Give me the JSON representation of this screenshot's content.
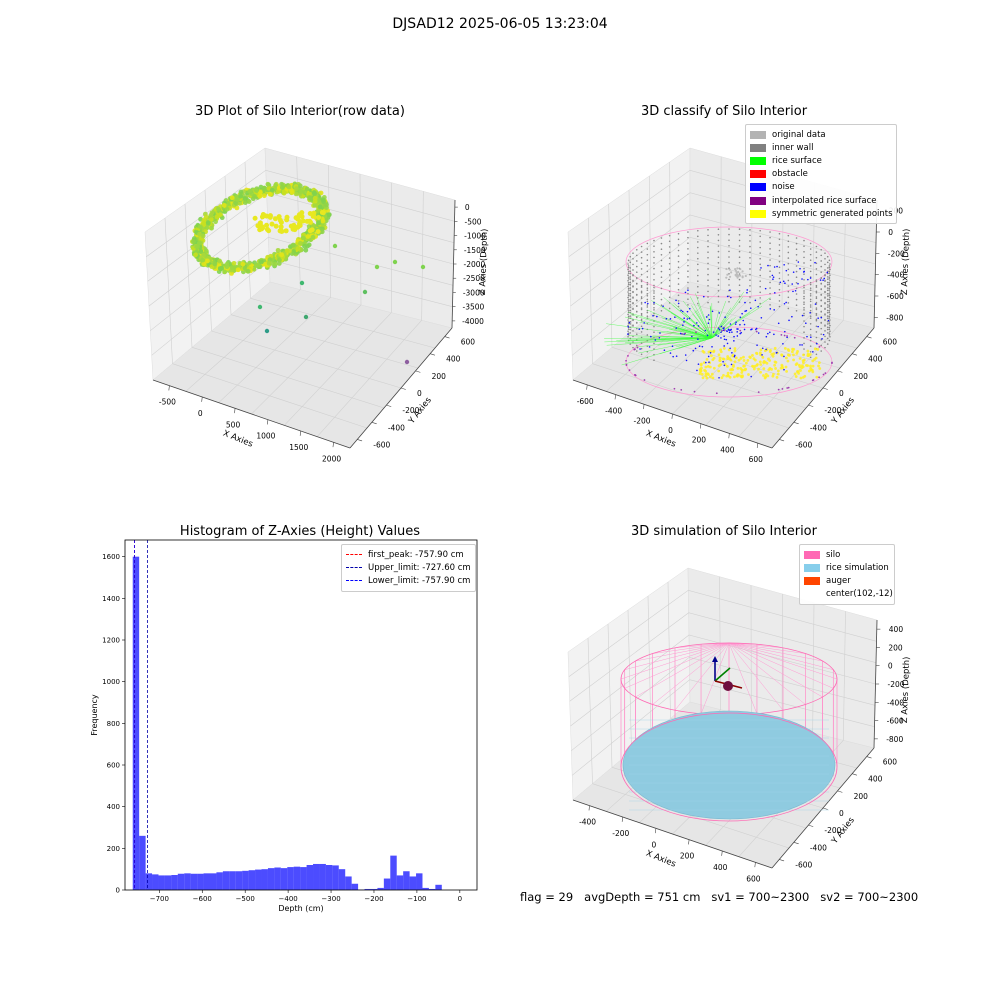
{
  "suptitle": "DJSAD12 2025-06-05 13:23:04",
  "footer": {
    "flag": "flag = 29",
    "avg_depth": "avgDepth = 751 cm",
    "sv1": "sv1 = 700~2300",
    "sv2": "sv2 = 700~2300"
  },
  "chart_data": [
    {
      "type": "scatter",
      "id": "raw",
      "title": "3D Plot of Silo Interior(row data)",
      "xlabel": "X Axies",
      "ylabel": "Y Axies",
      "zlabel": "Z Axies (Depth)",
      "xticks": [
        "-500",
        "0",
        "500",
        "1000",
        "1500",
        "2000"
      ],
      "yticks": [
        "-600",
        "-400",
        "-200",
        "0",
        "200",
        "400",
        "600"
      ],
      "zticks": [
        "0",
        "-500",
        "-1000",
        "-1500",
        "-2000",
        "-2500",
        "-3000",
        "-3500",
        "-4000"
      ]
    },
    {
      "type": "scatter",
      "id": "classify",
      "title": "3D classify of Silo Interior",
      "xlabel": "X Axies",
      "ylabel": "Y Axies",
      "zlabel": "Z Axies (Depth)",
      "xticks": [
        "-600",
        "-400",
        "-200",
        "0",
        "200",
        "400",
        "600"
      ],
      "yticks": [
        "-600",
        "-400",
        "-200",
        "0",
        "200",
        "400",
        "600"
      ],
      "zticks": [
        "200",
        "0",
        "-200",
        "-400",
        "-600",
        "-800"
      ],
      "legend": [
        {
          "name": "original data",
          "color": "#b3b3b3"
        },
        {
          "name": "inner wall",
          "color": "#808080"
        },
        {
          "name": "rice surface",
          "color": "#00ff00"
        },
        {
          "name": "obstacle",
          "color": "#ff0000"
        },
        {
          "name": "noise",
          "color": "#0000ff"
        },
        {
          "name": "interpolated rice surface",
          "color": "#800080"
        },
        {
          "name": "symmetric generated points",
          "color": "#ffff00"
        }
      ]
    },
    {
      "type": "bar",
      "id": "hist",
      "title": "Histogram of Z-Axies (Height) Values",
      "xlabel": "Depth (cm)",
      "ylabel": "Frequency",
      "xlim": [
        -780,
        40
      ],
      "ylim": [
        0,
        1680
      ],
      "xticks": [
        -700,
        -600,
        -500,
        -400,
        -300,
        -200,
        -100,
        0
      ],
      "yticks": [
        0,
        200,
        400,
        600,
        800,
        1000,
        1200,
        1400,
        1600
      ],
      "bin_width": 15,
      "bin_start": -762,
      "values": [
        1600,
        260,
        80,
        75,
        70,
        70,
        72,
        78,
        80,
        78,
        78,
        80,
        80,
        85,
        90,
        90,
        90,
        92,
        95,
        98,
        100,
        105,
        108,
        105,
        110,
        112,
        110,
        120,
        125,
        125,
        120,
        118,
        100,
        65,
        30,
        2,
        5,
        5,
        10,
        55,
        165,
        70,
        90,
        65,
        80,
        10,
        5,
        25
      ],
      "bar_color": "#0000ff",
      "vlines": [
        {
          "name": "first_peak: -757.90 cm",
          "x": -757.9,
          "color": "#ff0000"
        },
        {
          "name": "Upper_limit: -727.60 cm",
          "x": -727.6,
          "color": "#0000aa"
        },
        {
          "name": "Lower_limit: -757.90 cm",
          "x": -757.9,
          "color": "#0000ff"
        }
      ]
    },
    {
      "type": "scatter",
      "id": "sim",
      "title": "3D simulation of Silo Interior",
      "xlabel": "X Axies",
      "ylabel": "Y Axies",
      "zlabel": "Z Axies (Depth)",
      "xticks": [
        "-400",
        "-200",
        "0",
        "200",
        "400",
        "600"
      ],
      "yticks": [
        "-600",
        "-400",
        "-200",
        "0",
        "200",
        "400",
        "600"
      ],
      "zticks": [
        "400",
        "200",
        "0",
        "-200",
        "-400",
        "-600",
        "-800"
      ],
      "legend": [
        {
          "name": "silo",
          "color": "#ff69b4"
        },
        {
          "name": "rice simulation",
          "color": "#87ceeb"
        },
        {
          "name": "auger",
          "color": "#ff4500"
        },
        {
          "name": "center(102,-12)",
          "color": ""
        }
      ]
    }
  ]
}
